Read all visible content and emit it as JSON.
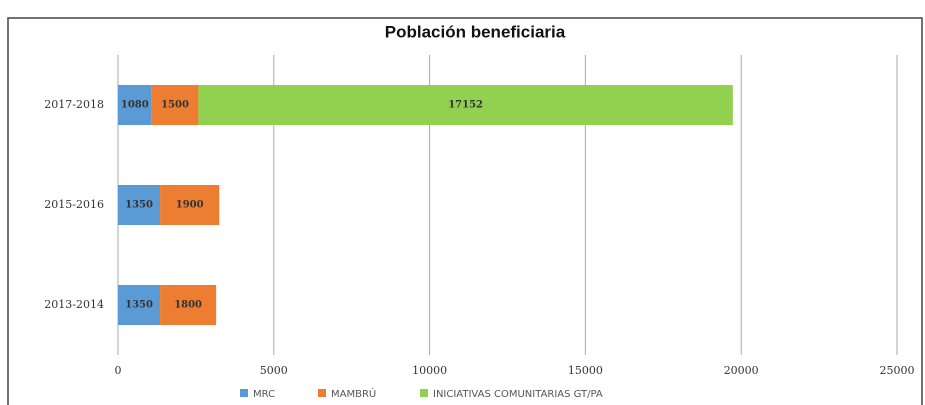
{
  "chart_data": {
    "type": "stacked-barh",
    "title": "Población beneficiaria",
    "categories": [
      "2017-2018",
      "2015-2016",
      "2013-2014"
    ],
    "series": [
      {
        "name": "MRC",
        "color": "#5b9bd5",
        "values": [
          1080,
          1350,
          1350
        ]
      },
      {
        "name": "MAMBRÚ",
        "color": "#ed7d31",
        "values": [
          1500,
          1900,
          1800
        ]
      },
      {
        "name": "INICIATIVAS COMUNITARIAS GT/PA",
        "color": "#92d050",
        "values": [
          17152,
          null,
          null
        ]
      }
    ],
    "xlim": [
      0,
      25000
    ],
    "xticks": [
      0,
      5000,
      10000,
      15000,
      20000,
      25000
    ],
    "grid": true
  }
}
